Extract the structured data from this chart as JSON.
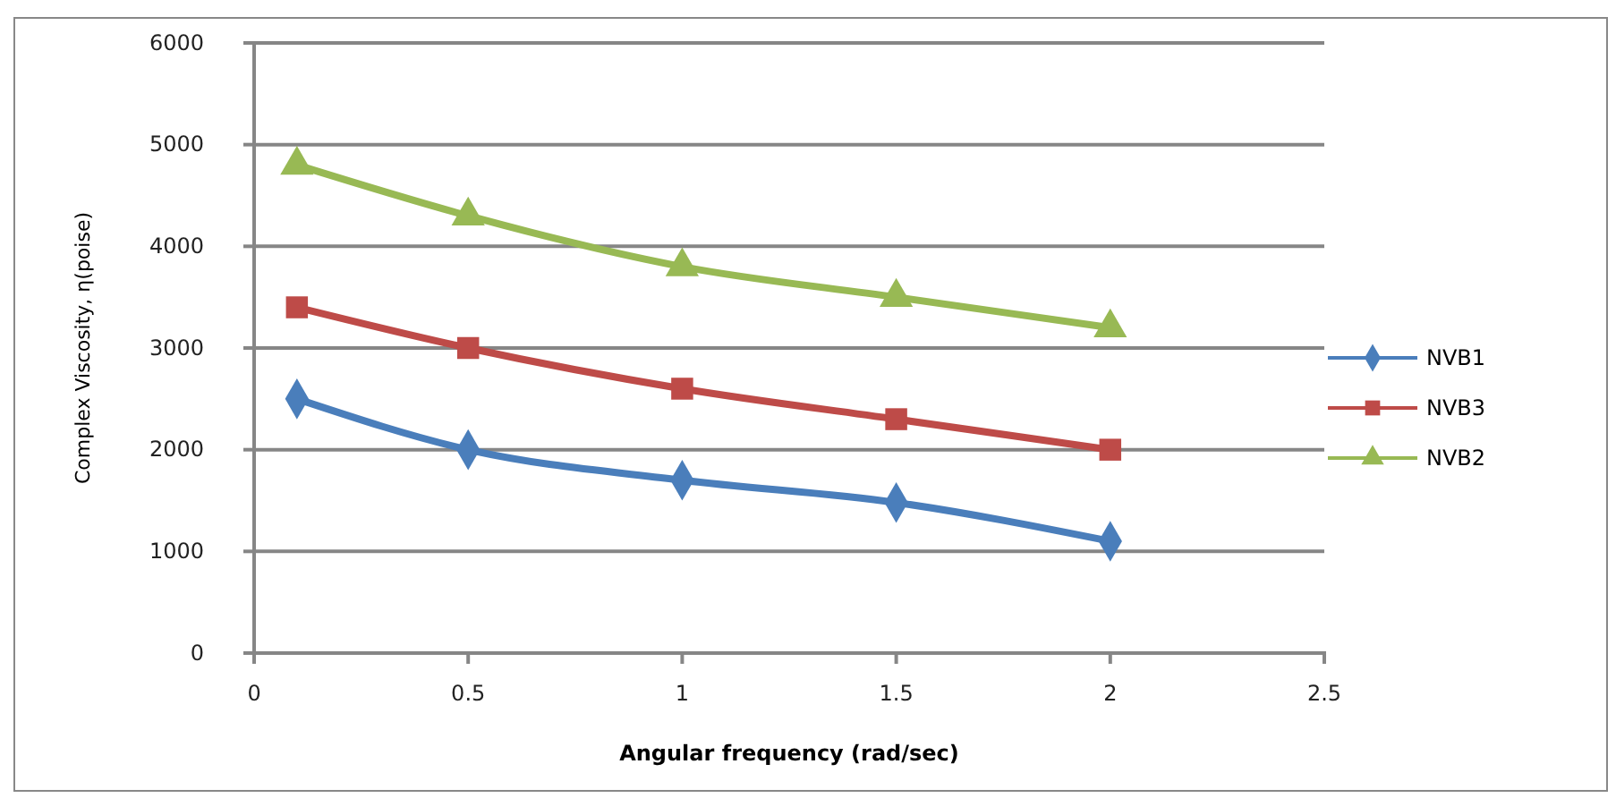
{
  "chart_data": {
    "type": "line",
    "xlabel": "Angular frequency (rad/sec)",
    "ylabel": "Complex Viscosity, η(poise)",
    "x": [
      0.1,
      0.5,
      1,
      1.5,
      2
    ],
    "xlim": [
      0,
      2.5
    ],
    "xticks": [
      0,
      0.5,
      1,
      1.5,
      2,
      2.5
    ],
    "ylim": [
      0,
      6000
    ],
    "yticks": [
      0,
      1000,
      2000,
      3000,
      4000,
      5000,
      6000
    ],
    "grid": "y",
    "legend": "right",
    "series": [
      {
        "name": "NVB1",
        "color": "#4a7ebb",
        "marker": "diamond",
        "values": [
          2500,
          2000,
          1700,
          1480,
          1100
        ]
      },
      {
        "name": "NVB3",
        "color": "#be4b48",
        "marker": "square",
        "values": [
          3400,
          3000,
          2600,
          2300,
          2000
        ]
      },
      {
        "name": "NVB2",
        "color": "#98b954",
        "marker": "triangle",
        "values": [
          4800,
          4300,
          3800,
          3500,
          3200
        ]
      }
    ]
  }
}
